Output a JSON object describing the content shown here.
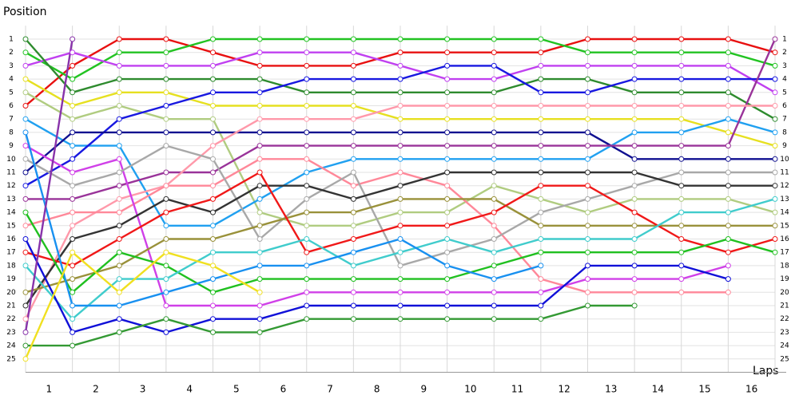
{
  "chart_data": {
    "type": "line",
    "y_axis_label": "Position",
    "x_axis_label": "Laps",
    "x": [
      0,
      1,
      2,
      3,
      4,
      5,
      6,
      7,
      8,
      9,
      10,
      11,
      12,
      13,
      14,
      15,
      16
    ],
    "xlim": [
      0,
      16
    ],
    "xticks": [
      {
        "value": 0.5,
        "label": "1"
      },
      {
        "value": 1.5,
        "label": "2"
      },
      {
        "value": 2.5,
        "label": "3"
      },
      {
        "value": 3.5,
        "label": "4"
      },
      {
        "value": 4.5,
        "label": "5"
      },
      {
        "value": 5.5,
        "label": "6"
      },
      {
        "value": 6.5,
        "label": "7"
      },
      {
        "value": 7.5,
        "label": "8"
      },
      {
        "value": 8.5,
        "label": "9"
      },
      {
        "value": 9.5,
        "label": "10"
      },
      {
        "value": 10.5,
        "label": "11"
      },
      {
        "value": 11.5,
        "label": "12"
      },
      {
        "value": 12.5,
        "label": "13"
      },
      {
        "value": 13.5,
        "label": "14"
      },
      {
        "value": 14.5,
        "label": "15"
      },
      {
        "value": 15.5,
        "label": "16"
      }
    ],
    "ylim": [
      0,
      26
    ],
    "y_reversed": true,
    "yticks": [
      1,
      2,
      3,
      4,
      5,
      6,
      7,
      8,
      9,
      10,
      11,
      12,
      13,
      14,
      15,
      16,
      17,
      18,
      19,
      20,
      21,
      22,
      23,
      24,
      25
    ],
    "grid": true,
    "series": [
      {
        "color": "#e81010",
        "values": [
          6,
          3,
          1,
          1,
          2,
          3,
          3,
          3,
          2,
          2,
          2,
          2,
          1,
          1,
          1,
          1,
          2
        ]
      },
      {
        "color": "#22c322",
        "values": [
          2,
          4,
          2,
          2,
          1,
          1,
          1,
          1,
          1,
          1,
          1,
          1,
          2,
          2,
          2,
          2,
          3
        ]
      },
      {
        "color": "#c040f0",
        "values": [
          3,
          2,
          3,
          3,
          3,
          2,
          2,
          2,
          3,
          4,
          4,
          3,
          3,
          3,
          3,
          3,
          5
        ]
      },
      {
        "color": "#2e8b2e",
        "values": [
          1,
          5,
          4,
          4,
          4,
          4,
          5,
          5,
          5,
          5,
          5,
          4,
          4,
          5,
          5,
          5,
          7
        ]
      },
      {
        "color": "#e6e020",
        "values": [
          4,
          6,
          5,
          5,
          6,
          6,
          6,
          6,
          7,
          7,
          7,
          7,
          7,
          7,
          7,
          8,
          9
        ]
      },
      {
        "color": "#b0cc80",
        "values": [
          5,
          7,
          6,
          7,
          7,
          14,
          15,
          15,
          14,
          14,
          12,
          13,
          14,
          13,
          13,
          13,
          14
        ]
      },
      {
        "color": "#20a0f0",
        "values": [
          7,
          9,
          9,
          15,
          15,
          13,
          11,
          10,
          10,
          10,
          10,
          10,
          10,
          8,
          8,
          7,
          8
        ]
      },
      {
        "color": "#1818e0",
        "values": [
          12,
          10,
          7,
          6,
          5,
          5,
          4,
          4,
          4,
          3,
          3,
          5,
          5,
          4,
          4,
          4,
          4
        ]
      },
      {
        "color": "#101090",
        "values": [
          11,
          8,
          8,
          8,
          8,
          8,
          8,
          8,
          8,
          8,
          8,
          8,
          8,
          10,
          10,
          10,
          10
        ]
      },
      {
        "color": "#993399",
        "values": [
          13,
          13,
          12,
          11,
          11,
          9,
          9,
          9,
          9,
          9,
          9,
          9,
          9,
          9,
          9,
          9,
          1
        ]
      },
      {
        "color": "#ff99aa",
        "values": [
          22,
          15,
          13,
          12,
          9,
          7,
          7,
          7,
          6,
          6,
          6,
          6,
          6,
          6,
          6,
          6,
          6
        ]
      },
      {
        "color": "#ff8899",
        "values": [
          15,
          14,
          14,
          12,
          12,
          10,
          10,
          12,
          11,
          12,
          15,
          19,
          20,
          20,
          20,
          20,
          null
        ]
      },
      {
        "color": "#d040e8",
        "values": [
          9,
          11,
          10,
          21,
          21,
          21,
          20,
          20,
          20,
          20,
          20,
          20,
          19,
          19,
          19,
          18,
          null
        ]
      },
      {
        "color": "#a8a8a8",
        "values": [
          10,
          12,
          11,
          9,
          10,
          16,
          13,
          11,
          18,
          17,
          16,
          14,
          13,
          12,
          11,
          11,
          11
        ]
      },
      {
        "color": "#333333",
        "values": [
          21,
          16,
          15,
          13,
          14,
          12,
          12,
          13,
          12,
          11,
          11,
          11,
          11,
          11,
          12,
          12,
          12
        ]
      },
      {
        "color": "#99913a",
        "values": [
          20,
          19,
          18,
          16,
          16,
          15,
          14,
          14,
          13,
          13,
          13,
          15,
          15,
          15,
          15,
          15,
          15
        ]
      },
      {
        "color": "#f01818",
        "values": [
          17,
          18,
          16,
          14,
          13,
          11,
          17,
          16,
          15,
          15,
          14,
          12,
          12,
          14,
          16,
          17,
          16
        ]
      },
      {
        "color": "#20c020",
        "values": [
          14,
          20,
          17,
          18,
          20,
          19,
          19,
          19,
          19,
          19,
          18,
          17,
          17,
          17,
          17,
          16,
          17
        ]
      },
      {
        "color": "#40cccc",
        "values": [
          18,
          22,
          19,
          19,
          17,
          17,
          16,
          18,
          17,
          16,
          17,
          16,
          16,
          16,
          14,
          14,
          13
        ]
      },
      {
        "color": "#1890f0",
        "values": [
          8,
          21,
          21,
          20,
          19,
          18,
          18,
          17,
          16,
          18,
          19,
          18,
          null,
          null,
          null,
          null,
          null
        ]
      },
      {
        "color": "#1010d8",
        "values": [
          16,
          23,
          22,
          23,
          22,
          22,
          21,
          21,
          21,
          21,
          21,
          21,
          18,
          18,
          18,
          19,
          null
        ]
      },
      {
        "color": "#339933",
        "values": [
          24,
          24,
          23,
          22,
          23,
          23,
          22,
          22,
          22,
          22,
          22,
          22,
          21,
          21,
          null,
          null,
          null
        ]
      },
      {
        "color": "#f0e020",
        "values": [
          25,
          17,
          20,
          17,
          18,
          20,
          null,
          null,
          null,
          null,
          null,
          null,
          null,
          null,
          null,
          null,
          null
        ]
      },
      {
        "color": "#8833aa",
        "values": [
          23,
          1,
          null,
          null,
          null,
          null,
          null,
          null,
          null,
          null,
          null,
          null,
          null,
          null,
          null,
          null,
          null
        ]
      }
    ]
  }
}
